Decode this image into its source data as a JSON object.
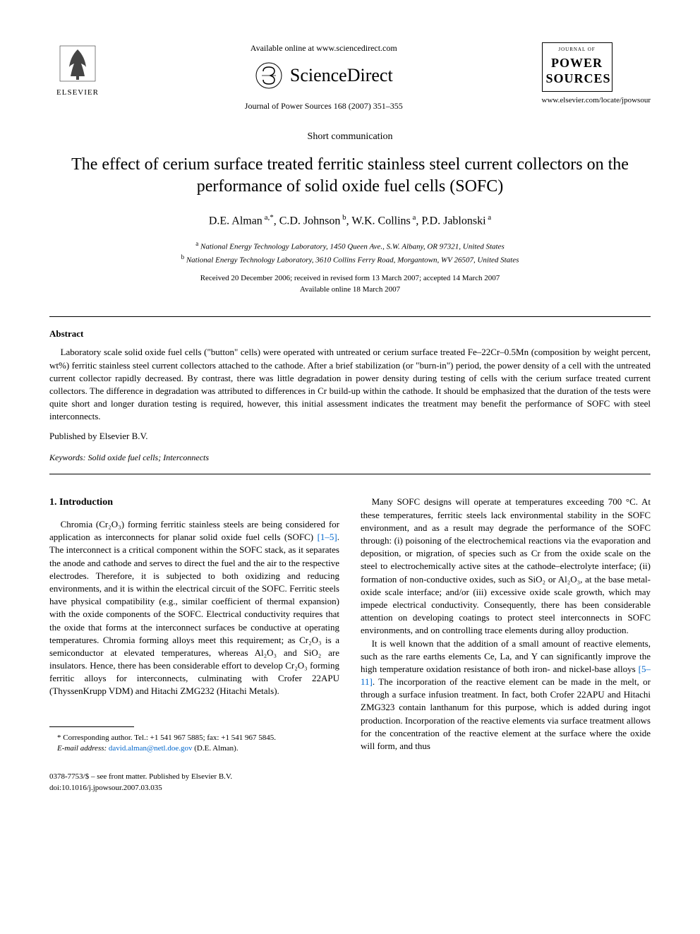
{
  "header": {
    "available_online": "Available online at www.sciencedirect.com",
    "sciencedirect": "ScienceDirect",
    "journal_ref": "Journal of Power Sources 168 (2007) 351–355",
    "elsevier_label": "ELSEVIER",
    "power_journal_label": "JOURNAL OF",
    "power_title_line1": "POWER",
    "power_title_line2": "SOURCES",
    "journal_url": "www.elsevier.com/locate/jpowsour"
  },
  "article": {
    "type": "Short communication",
    "title": "The effect of cerium surface treated ferritic stainless steel current collectors on the performance of solid oxide fuel cells (SOFC)",
    "authors_html": "D.E. Alman<sup> a,*</sup>, C.D. Johnson<sup> b</sup>, W.K. Collins<sup> a</sup>, P.D. Jablonski<sup> a</sup>",
    "affiliation_a": "National Energy Technology Laboratory, 1450 Queen Ave., S.W. Albany, OR 97321, United States",
    "affiliation_b": "National Energy Technology Laboratory, 3610 Collins Ferry Road, Morgantown, WV 26507, United States",
    "dates_line1": "Received 20 December 2006; received in revised form 13 March 2007; accepted 14 March 2007",
    "dates_line2": "Available online 18 March 2007"
  },
  "abstract": {
    "heading": "Abstract",
    "text": "Laboratory scale solid oxide fuel cells (\"button\" cells) were operated with untreated or cerium surface treated Fe–22Cr–0.5Mn (composition by weight percent, wt%) ferritic stainless steel current collectors attached to the cathode. After a brief stabilization (or \"burn-in\") period, the power density of a cell with the untreated current collector rapidly decreased. By contrast, there was little degradation in power density during testing of cells with the cerium surface treated current collectors. The difference in degradation was attributed to differences in Cr build-up within the cathode. It should be emphasized that the duration of the tests were quite short and longer duration testing is required, however, this initial assessment indicates the treatment may benefit the performance of SOFC with steel interconnects.",
    "published": "Published by Elsevier B.V.",
    "keywords_label": "Keywords:",
    "keywords": "Solid oxide fuel cells; Interconnects"
  },
  "body": {
    "section1_heading": "1.  Introduction",
    "col1_p1_pre": "Chromia (Cr₂O₃) forming ferritic stainless steels are being considered for application as interconnects for planar solid oxide fuel cells (SOFC) ",
    "col1_ref1": "[1–5]",
    "col1_p1_post": ". The interconnect is a critical component within the SOFC stack, as it separates the anode and cathode and serves to direct the fuel and the air to the respective electrodes. Therefore, it is subjected to both oxidizing and reducing environments, and it is within the electrical circuit of the SOFC. Ferritic steels have physical compatibility (e.g., similar coefficient of thermal expansion) with the oxide components of the SOFC. Electrical conductivity requires that the oxide that forms at the interconnect surfaces be conductive at operating temperatures. Chromia forming alloys meet this requirement; as Cr₂O₃ is a semiconductor at elevated temperatures, whereas Al₂O₃ and SiO₂ are insulators. Hence, there has been considerable effort to develop Cr₂O₃ forming ferritic alloys for interconnects, culminating with Crofer 22APU (ThyssenKrupp VDM) and Hitachi ZMG232 (Hitachi Metals).",
    "col2_p1": "Many SOFC designs will operate at temperatures exceeding 700 °C. At these temperatures, ferritic steels lack environmental stability in the SOFC environment, and as a result may degrade the performance of the SOFC through: (i) poisoning of the electrochemical reactions via the evaporation and deposition, or migration, of species such as Cr from the oxide scale on the steel to electrochemically active sites at the cathode–electrolyte interface; (ii) formation of non-conductive oxides, such as SiO₂ or Al₂O₃, at the base metal-oxide scale interface; and/or (iii) excessive oxide scale growth, which may impede electrical conductivity. Consequently, there has been considerable attention on developing coatings to protect steel interconnects in SOFC environments, and on controlling trace elements during alloy production.",
    "col2_p2_pre": "It is well known that the addition of a small amount of reactive elements, such as the rare earths elements Ce, La, and Y can significantly improve the high temperature oxidation resistance of both iron- and nickel-base alloys ",
    "col2_ref1": "[5–11]",
    "col2_p2_post": ". The incorporation of the reactive element can be made in the melt, or through a surface infusion treatment. In fact, both Crofer 22APU and Hitachi ZMG323 contain lanthanum for this purpose, which is added during ingot production. Incorporation of the reactive elements via surface treatment allows for the concentration of the reactive element at the surface where the oxide will form, and thus"
  },
  "footnote": {
    "corresponding": "* Corresponding author. Tel.: +1 541 967 5885; fax: +1 541 967 5845.",
    "email_label": "E-mail address:",
    "email": "david.alman@netl.doe.gov",
    "email_paren": "(D.E. Alman)."
  },
  "footer": {
    "copyright": "0378-7753/$ – see front matter. Published by Elsevier B.V.",
    "doi": "doi:10.1016/j.jpowsour.2007.03.035"
  },
  "colors": {
    "text": "#000000",
    "link": "#0066cc",
    "background": "#ffffff"
  }
}
